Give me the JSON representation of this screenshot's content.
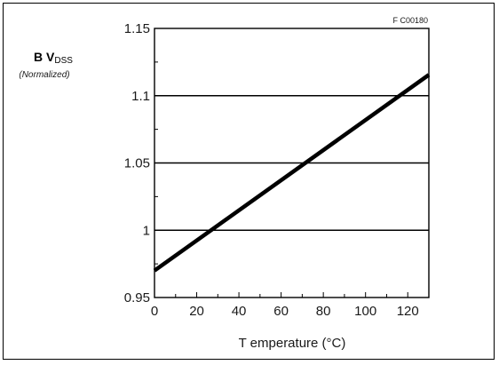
{
  "figure_code": "F C00180",
  "chart_data": {
    "type": "line",
    "title": "",
    "xlabel": "T emperature (°C)",
    "ylabel": "B Vdss",
    "ylabel_main": "B V",
    "ylabel_subscript": "DSS",
    "ylabel_note": "(Normalized)",
    "xlim": [
      0,
      130
    ],
    "ylim": [
      0.95,
      1.15
    ],
    "x_ticks": [
      0,
      20,
      40,
      60,
      80,
      100,
      120
    ],
    "x_tick_labels": [
      "0",
      "20",
      "40",
      "60",
      "80",
      "100",
      "120"
    ],
    "y_ticks": [
      0.95,
      1,
      1.05,
      1.1,
      1.15
    ],
    "y_tick_labels": [
      "0.95",
      "1",
      "1.05",
      "1.1",
      "1.15"
    ],
    "grid": "horizontal",
    "series": [
      {
        "x": [
          0,
          130
        ],
        "y": [
          0.97,
          1.1155
        ]
      }
    ]
  }
}
